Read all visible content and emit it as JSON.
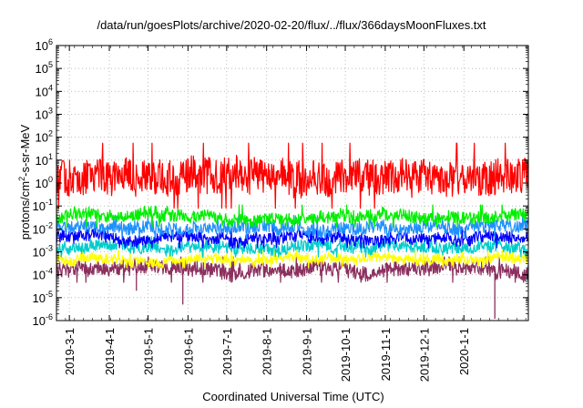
{
  "chart_data": {
    "type": "line",
    "title": "/data/run/goesPlots/archive/2020-02-20/flux/../flux/366daysMoonFluxes.txt",
    "xlabel": "Coordinated Universal Time (UTC)",
    "ylabel": {
      "prefix": "protons/cm",
      "sup": "2",
      "suffix": "-s-sr-MeV"
    },
    "y_scale": "log",
    "ylim": [
      1e-06,
      1000000.0
    ],
    "y_ticks": [
      {
        "value": 1e-06,
        "base": "10",
        "exp": "-6"
      },
      {
        "value": 1e-05,
        "base": "10",
        "exp": "-5"
      },
      {
        "value": 0.0001,
        "base": "10",
        "exp": "-4"
      },
      {
        "value": 0.001,
        "base": "10",
        "exp": "-3"
      },
      {
        "value": 0.01,
        "base": "10",
        "exp": "-2"
      },
      {
        "value": 0.1,
        "base": "10",
        "exp": "-1"
      },
      {
        "value": 1,
        "base": "10",
        "exp": "0"
      },
      {
        "value": 10,
        "base": "10",
        "exp": "1"
      },
      {
        "value": 100,
        "base": "10",
        "exp": "2"
      },
      {
        "value": 1000.0,
        "base": "10",
        "exp": "3"
      },
      {
        "value": 10000.0,
        "base": "10",
        "exp": "4"
      },
      {
        "value": 100000.0,
        "base": "10",
        "exp": "5"
      },
      {
        "value": 1000000.0,
        "base": "10",
        "exp": "6"
      }
    ],
    "xlim": [
      "2019-02-19",
      "2020-02-20"
    ],
    "x_ticks": [
      "2019-3-1",
      "2019-4-1",
      "2019-5-1",
      "2019-6-1",
      "2019-7-1",
      "2019-8-1",
      "2019-9-1",
      "2019-10-1",
      "2019-11-1",
      "2019-12-1",
      "2020-1-1"
    ],
    "x_tick_dates": [
      "2019-03-01",
      "2019-04-01",
      "2019-05-01",
      "2019-06-01",
      "2019-07-01",
      "2019-08-01",
      "2019-09-01",
      "2019-10-01",
      "2019-11-01",
      "2019-12-01",
      "2020-01-01"
    ],
    "grid": "dotted, x and y",
    "legend": "none",
    "series": [
      {
        "color": "#8b2f5e",
        "typical": 0.00018,
        "range": [
          4e-05,
          0.0006
        ],
        "dips": [
          {
            "date": "2019-05-28",
            "value": 5e-06
          },
          {
            "date": "2020-01-25",
            "value": 1.2e-06
          },
          {
            "date": "2019-04-22",
            "value": 2e-05
          }
        ]
      },
      {
        "color": "#ffff00",
        "typical": 0.0005,
        "range": [
          0.0002,
          0.0012
        ]
      },
      {
        "color": "#00cccc",
        "typical": 0.0016,
        "range": [
          0.0006,
          0.005
        ]
      },
      {
        "color": "#0000ff",
        "typical": 0.004,
        "range": [
          0.0015,
          0.012
        ]
      },
      {
        "color": "#1e90ff",
        "typical": 0.012,
        "range": [
          0.004,
          0.04
        ]
      },
      {
        "color": "#00ee00",
        "typical": 0.035,
        "range": [
          0.012,
          0.12
        ]
      },
      {
        "color": "#ff0000",
        "typical": 2,
        "range": [
          0.08,
          60
        ]
      }
    ]
  }
}
